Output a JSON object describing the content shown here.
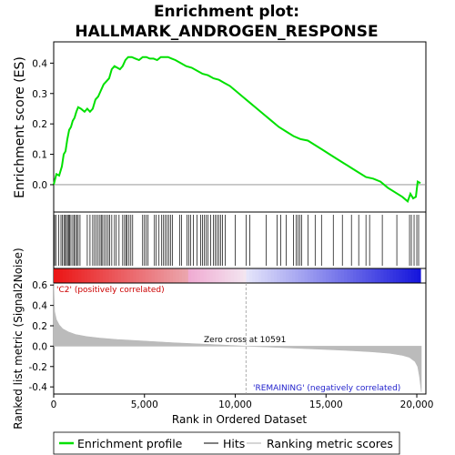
{
  "chart_data": {
    "type": "line",
    "title_lines": [
      "Enrichment plot:",
      "HALLMARK_ANDROGEN_RESPONSE"
    ],
    "xlabel": "Rank in Ordered Dataset",
    "ylabel_es": "Enrichment score (ES)",
    "ylabel_metric": "Ranked list metric (Signal2Noise)",
    "xlim": [
      0,
      20500
    ],
    "x_ticks": [
      0,
      5000,
      10000,
      15000,
      20000
    ],
    "x_tick_labels": [
      "0",
      "5,000",
      "10,000",
      "15,000",
      "20,000"
    ],
    "es_ylim": [
      -0.09,
      0.47
    ],
    "es_y_ticks": [
      0.0,
      0.1,
      0.2,
      0.3,
      0.4
    ],
    "es_y_tick_labels": [
      "0.0",
      "0.1",
      "0.2",
      "0.3",
      "0.4"
    ],
    "metric_ylim": [
      -0.47,
      0.62
    ],
    "metric_y_ticks": [
      -0.4,
      -0.2,
      0.0,
      0.2,
      0.4,
      0.6
    ],
    "metric_y_tick_labels": [
      "-0.4",
      "-0.2",
      "0.0",
      "0.2",
      "0.4",
      "0.6"
    ],
    "zero_cross_rank": 10591,
    "zero_cross_label": "Zero cross at 10591",
    "positive_label": "'C2' (positively correlated)",
    "negative_label": "'REMAINING' (negatively correlated)",
    "series": [
      {
        "name": "Enrichment profile",
        "color": "#00e000",
        "x": [
          0,
          150,
          300,
          450,
          550,
          650,
          750,
          850,
          950,
          1050,
          1150,
          1250,
          1350,
          1500,
          1700,
          1850,
          2000,
          2150,
          2300,
          2450,
          2600,
          2750,
          2900,
          3050,
          3200,
          3350,
          3500,
          3650,
          3800,
          3950,
          4100,
          4300,
          4500,
          4700,
          4900,
          5100,
          5300,
          5500,
          5700,
          5900,
          6100,
          6300,
          6500,
          6700,
          7000,
          7300,
          7600,
          7900,
          8200,
          8500,
          8800,
          9100,
          9400,
          9700,
          10000,
          10400,
          10800,
          11200,
          11600,
          12000,
          12400,
          12800,
          13200,
          13600,
          14000,
          14400,
          14800,
          15200,
          15600,
          16000,
          16400,
          16800,
          17200,
          17600,
          18000,
          18400,
          18800,
          19200,
          19500,
          19650,
          19800,
          19950,
          20050,
          20200
        ],
        "y": [
          0.0,
          0.035,
          0.03,
          0.06,
          0.1,
          0.11,
          0.15,
          0.18,
          0.19,
          0.21,
          0.22,
          0.24,
          0.255,
          0.25,
          0.24,
          0.25,
          0.24,
          0.25,
          0.28,
          0.29,
          0.31,
          0.33,
          0.34,
          0.35,
          0.38,
          0.39,
          0.385,
          0.38,
          0.39,
          0.41,
          0.42,
          0.42,
          0.415,
          0.41,
          0.42,
          0.42,
          0.415,
          0.415,
          0.41,
          0.42,
          0.42,
          0.42,
          0.415,
          0.41,
          0.4,
          0.39,
          0.385,
          0.375,
          0.365,
          0.36,
          0.35,
          0.345,
          0.335,
          0.325,
          0.31,
          0.29,
          0.27,
          0.25,
          0.23,
          0.21,
          0.19,
          0.175,
          0.16,
          0.15,
          0.145,
          0.13,
          0.115,
          0.1,
          0.085,
          0.07,
          0.055,
          0.04,
          0.025,
          0.02,
          0.01,
          -0.01,
          -0.025,
          -0.04,
          -0.055,
          -0.03,
          -0.045,
          -0.04,
          0.01,
          0.005
        ]
      },
      {
        "name": "Ranking metric scores",
        "color": "#bbbbbb",
        "x": [
          0,
          50,
          150,
          300,
          500,
          800,
          1200,
          1800,
          2500,
          3500,
          5000,
          6500,
          8000,
          9500,
          10591,
          12000,
          14000,
          16000,
          17500,
          18500,
          19200,
          19600,
          19900,
          20050,
          20150,
          20250
        ],
        "y": [
          0.62,
          0.34,
          0.26,
          0.21,
          0.17,
          0.14,
          0.115,
          0.095,
          0.08,
          0.065,
          0.05,
          0.035,
          0.022,
          0.01,
          0.0,
          -0.01,
          -0.025,
          -0.04,
          -0.055,
          -0.07,
          -0.09,
          -0.11,
          -0.15,
          -0.2,
          -0.3,
          -0.45
        ]
      }
    ],
    "hits": [
      50,
      120,
      280,
      400,
      480,
      560,
      620,
      700,
      760,
      820,
      880,
      950,
      1050,
      1120,
      1200,
      1280,
      1350,
      1450,
      1850,
      2000,
      2150,
      2250,
      2350,
      2450,
      2550,
      2620,
      2700,
      2800,
      2900,
      3000,
      3080,
      3200,
      3350,
      3450,
      3600,
      3800,
      3900,
      3980,
      4050,
      4150,
      4250,
      4350,
      4900,
      5000,
      5100,
      5200,
      5550,
      5650,
      5800,
      5950,
      6050,
      6150,
      6250,
      6350,
      6450,
      6550,
      6950,
      7050,
      7350,
      7450,
      7550,
      7700,
      7900,
      8100,
      8200,
      8300,
      8400,
      8500,
      8650,
      8800,
      8900,
      9000,
      9100,
      9200,
      9300,
      9450,
      10000,
      10600,
      10800,
      11700,
      12300,
      12500,
      12800,
      13200,
      13350,
      13450,
      13550,
      13650,
      14000,
      14400,
      14750,
      15400,
      15900,
      16400,
      16800,
      17200,
      17400,
      18100,
      18900,
      19600,
      19700,
      19850,
      20000,
      20100
    ]
  },
  "legend": {
    "items": [
      "Enrichment profile",
      "Hits",
      "Ranking metric scores"
    ],
    "colors": [
      "#00e000",
      "#000000",
      "#bbbbbb"
    ]
  }
}
